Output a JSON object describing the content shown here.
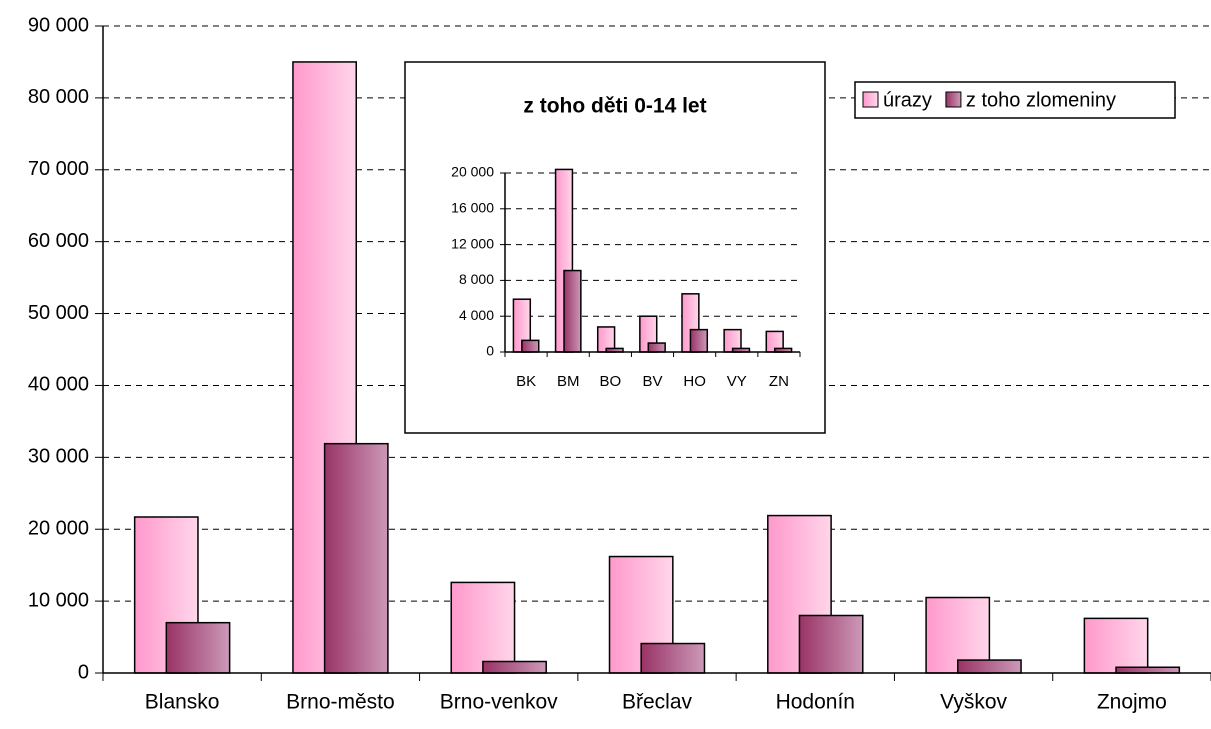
{
  "chart_data": [
    {
      "type": "bar",
      "categories": [
        "Blansko",
        "Brno-město",
        "Brno-venkov",
        "Břeclav",
        "Hodonín",
        "Vyškov",
        "Znojmo"
      ],
      "series": [
        {
          "name": "úrazy",
          "color": "#ff99cc",
          "values": [
            21700,
            85000,
            12600,
            16200,
            21900,
            10500,
            7600
          ]
        },
        {
          "name": "z toho zlomeniny",
          "color": "#993366",
          "values": [
            7000,
            31900,
            1600,
            4100,
            8000,
            1800,
            800
          ]
        }
      ],
      "ylim": [
        0,
        90000
      ],
      "yticks": [
        {
          "value": 0,
          "label": "0"
        },
        {
          "value": 10000,
          "label": "10 000"
        },
        {
          "value": 20000,
          "label": "20 000"
        },
        {
          "value": 30000,
          "label": "30 000"
        },
        {
          "value": 40000,
          "label": "40 000"
        },
        {
          "value": 50000,
          "label": "50 000"
        },
        {
          "value": 60000,
          "label": "60 000"
        },
        {
          "value": 70000,
          "label": "70 000"
        },
        {
          "value": 80000,
          "label": "80 000"
        },
        {
          "value": 90000,
          "label": "90 000"
        }
      ],
      "grid": true,
      "legend": "top-right"
    },
    {
      "type": "bar",
      "title": "z toho děti 0-14 let",
      "categories": [
        "BK",
        "BM",
        "BO",
        "BV",
        "HO",
        "VY",
        "ZN"
      ],
      "series": [
        {
          "color": "#ff99cc",
          "values": [
            5900,
            20400,
            2800,
            4000,
            6500,
            2500,
            2300
          ]
        },
        {
          "color": "#993366",
          "values": [
            1300,
            9100,
            400,
            1000,
            2500,
            400,
            400
          ]
        }
      ],
      "ylim": [
        0,
        20000
      ],
      "yticks": [
        {
          "value": 0,
          "label": "0"
        },
        {
          "value": 4000,
          "label": "4 000"
        },
        {
          "value": 8000,
          "label": "8 000"
        },
        {
          "value": 12000,
          "label": "12 000"
        },
        {
          "value": 16000,
          "label": "16 000"
        },
        {
          "value": 20000,
          "label": "20 000"
        }
      ],
      "grid": true
    }
  ]
}
